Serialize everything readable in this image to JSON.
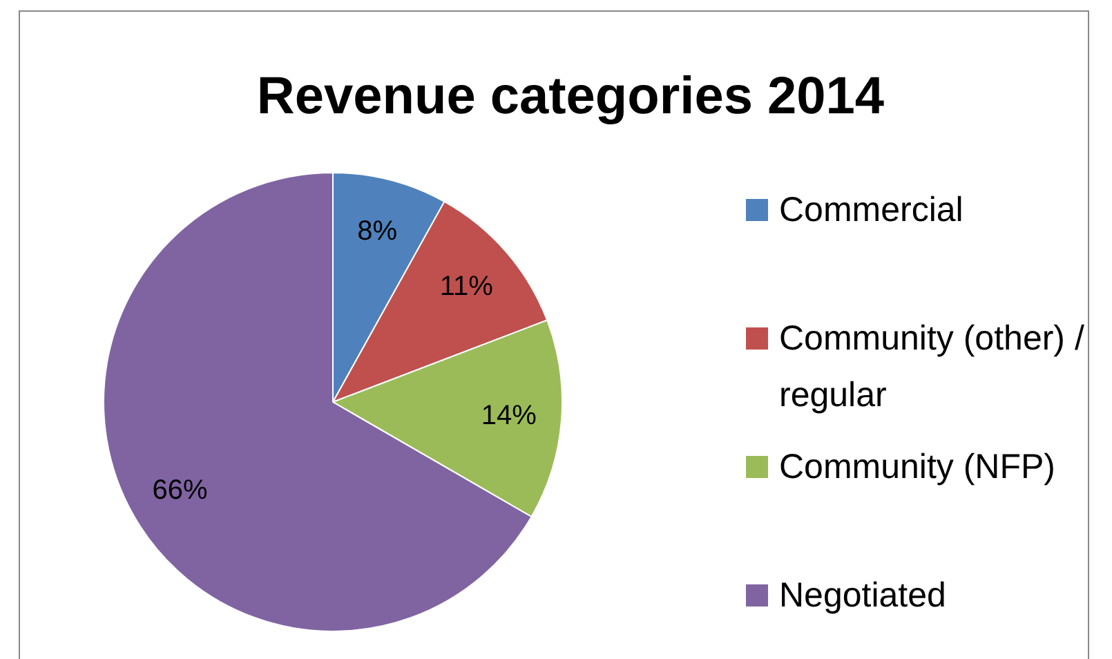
{
  "chart_data": {
    "type": "pie",
    "title": "Revenue categories 2014",
    "categories": [
      "Commercial",
      "Community (other) / regular",
      "Community (NFP)",
      "Negotiated"
    ],
    "values": [
      8,
      11,
      14,
      66
    ],
    "colors": [
      "#4f81bd",
      "#c0504d",
      "#9bbb59",
      "#8064a2"
    ],
    "value_labels": [
      "8%",
      "11%",
      "14%",
      "66%"
    ],
    "legend": "right"
  }
}
